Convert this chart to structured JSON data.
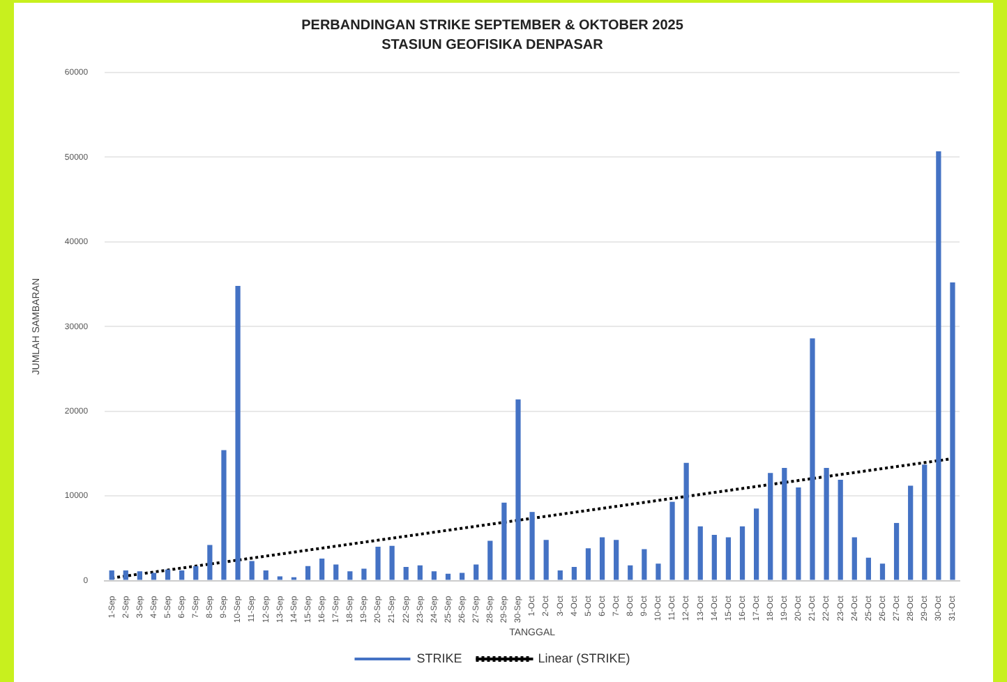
{
  "chart_data": {
    "type": "bar",
    "title": "PERBANDINGAN STRIKE SEPTEMBER & OKTOBER 2025",
    "subtitle": "STASIUN GEOFISIKA DENPASAR",
    "xlabel": "TANGGAL",
    "ylabel": "JUMLAH SAMBARAN",
    "categories": [
      "1-Sep",
      "2-Sep",
      "3-Sep",
      "4-Sep",
      "5-Sep",
      "6-Sep",
      "7-Sep",
      "8-Sep",
      "9-Sep",
      "10-Sep",
      "11-Sep",
      "12-Sep",
      "13-Sep",
      "14-Sep",
      "15-Sep",
      "16-Sep",
      "17-Sep",
      "18-Sep",
      "19-Sep",
      "20-Sep",
      "21-Sep",
      "22-Sep",
      "23-Sep",
      "24-Sep",
      "25-Sep",
      "26-Sep",
      "27-Sep",
      "28-Sep",
      "29-Sep",
      "30-Sep",
      "1-Oct",
      "2-Oct",
      "3-Oct",
      "4-Oct",
      "5-Oct",
      "6-Oct",
      "7-Oct",
      "8-Oct",
      "9-Oct",
      "10-Oct",
      "11-Oct",
      "12-Oct",
      "13-Oct",
      "14-Oct",
      "15-Oct",
      "16-Oct",
      "17-Oct",
      "18-Oct",
      "19-Oct",
      "20-Oct",
      "21-Oct",
      "22-Oct",
      "23-Oct",
      "24-Oct",
      "25-Oct",
      "26-Oct",
      "27-Oct",
      "28-Oct",
      "29-Oct",
      "30-Oct",
      "31-Oct"
    ],
    "series": [
      {
        "name": "STRIKE",
        "color": "#4472c4",
        "values": [
          1200,
          1200,
          1100,
          900,
          1300,
          1200,
          1700,
          4200,
          15400,
          34800,
          2300,
          1200,
          500,
          400,
          1700,
          2600,
          1900,
          1100,
          1400,
          4000,
          4100,
          1600,
          1800,
          1100,
          800,
          900,
          1900,
          4700,
          9200,
          21400,
          8100,
          4800,
          1200,
          1600,
          3800,
          5100,
          4800,
          1800,
          3700,
          2000,
          9300,
          13900,
          6400,
          5400,
          5100,
          6400,
          8500,
          12700,
          13300,
          11000,
          28600,
          13300,
          11900,
          5100,
          2700,
          2000,
          6800,
          11200,
          13700,
          50700,
          35200
        ]
      },
      {
        "name": "Linear (STRIKE)",
        "type": "line",
        "color": "#000000",
        "line_style": "dotted",
        "marker": "none",
        "x": [
          "1-Sep",
          "31-Oct"
        ],
        "values": [
          300,
          14400
        ]
      }
    ],
    "ylim": [
      0,
      60000
    ],
    "yticks": [
      0,
      10000,
      20000,
      30000,
      40000,
      50000,
      60000
    ],
    "grid": "y",
    "legend": "bottom"
  }
}
